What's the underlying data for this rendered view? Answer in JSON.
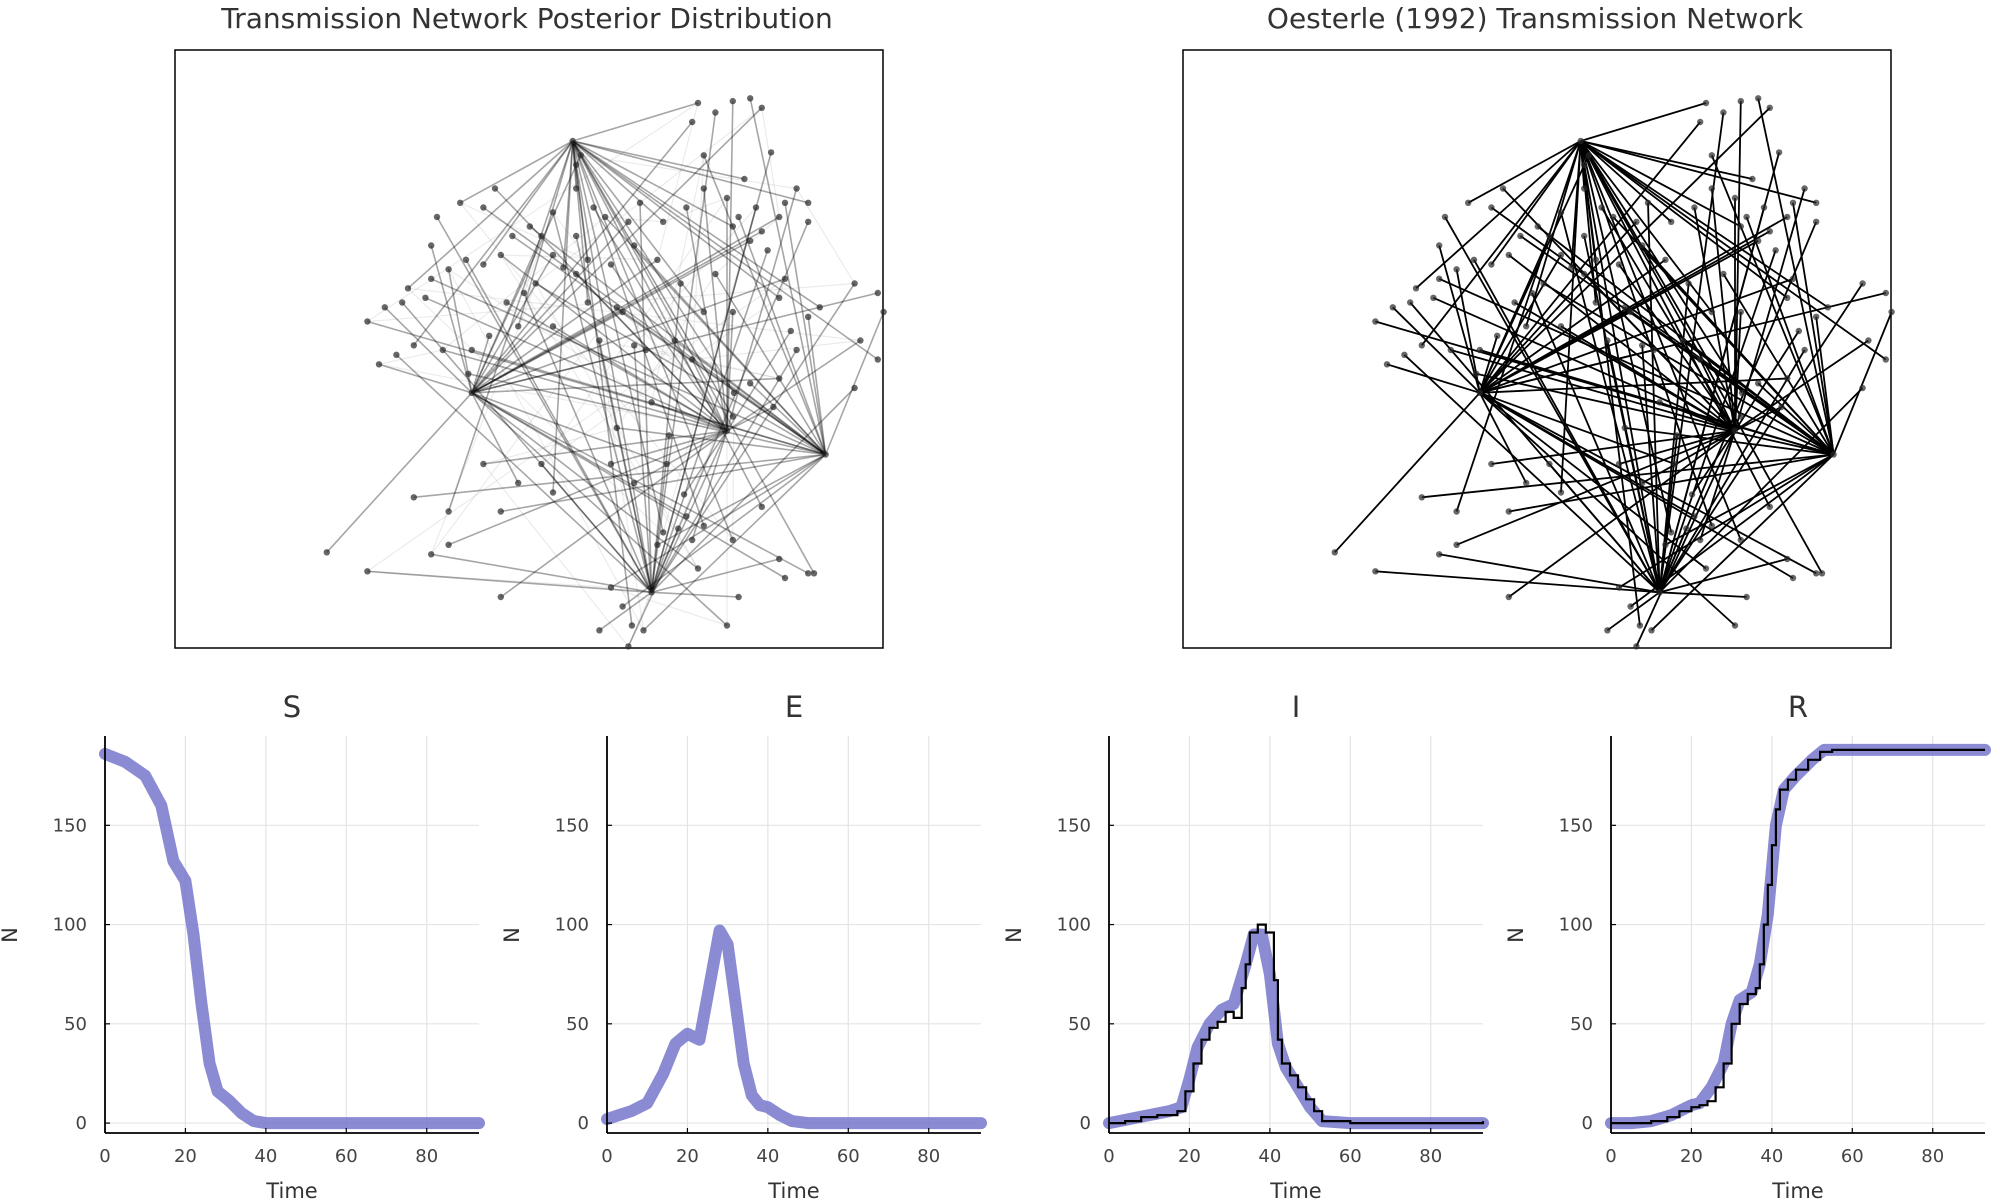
{
  "figure": {
    "network_titles": [
      "Transmission Network Posterior Distribution",
      "Oesterle (1992) Transmission Network"
    ]
  },
  "chart_data": [
    {
      "type": "network",
      "title": "Transmission Network Posterior Distribution",
      "edge_style": "posterior-weighted (transparent gray)"
    },
    {
      "type": "network",
      "title": "Oesterle (1992) Transmission Network",
      "edge_style": "observed (solid black)"
    },
    {
      "type": "line",
      "title": "S",
      "xlabel": "Time",
      "ylabel": "N",
      "xlim": [
        0,
        93
      ],
      "ylim": [
        -5,
        195
      ],
      "xticks": [
        0,
        20,
        40,
        60,
        80
      ],
      "yticks": [
        0,
        50,
        100,
        150
      ],
      "grid": true,
      "series": [
        {
          "band_color": "#7777cc",
          "x": [
            0,
            5,
            10,
            14,
            17,
            20,
            22,
            24,
            26,
            28,
            31,
            34,
            37,
            40,
            50,
            60,
            70,
            80,
            93
          ],
          "y": [
            186,
            182,
            175,
            160,
            132,
            122,
            95,
            60,
            30,
            16,
            11,
            5,
            1,
            0,
            0,
            0,
            0,
            0,
            0
          ]
        }
      ]
    },
    {
      "type": "line",
      "title": "E",
      "xlabel": "Time",
      "ylabel": "N",
      "xlim": [
        0,
        93
      ],
      "ylim": [
        -5,
        195
      ],
      "xticks": [
        0,
        20,
        40,
        60,
        80
      ],
      "yticks": [
        0,
        50,
        100,
        150
      ],
      "grid": true,
      "series": [
        {
          "band_color": "#7777cc",
          "x": [
            0,
            3,
            6,
            10,
            14,
            17,
            20,
            23,
            26,
            28,
            30,
            32,
            34,
            36,
            38,
            40,
            43,
            46,
            50,
            60,
            70,
            80,
            93
          ],
          "y": [
            2,
            4,
            6,
            10,
            25,
            40,
            45,
            42,
            75,
            97,
            90,
            60,
            30,
            14,
            9,
            8,
            4,
            1,
            0,
            0,
            0,
            0,
            0
          ]
        }
      ]
    },
    {
      "type": "line",
      "title": "I",
      "xlabel": "Time",
      "ylabel": "N",
      "xlim": [
        0,
        93
      ],
      "ylim": [
        -5,
        195
      ],
      "xticks": [
        0,
        20,
        40,
        60,
        80
      ],
      "yticks": [
        0,
        50,
        100,
        150
      ],
      "grid": true,
      "series": [
        {
          "band_color": "#7777cc",
          "x": [
            0,
            5,
            10,
            15,
            18,
            20,
            22,
            25,
            28,
            31,
            34,
            36,
            38,
            40,
            42,
            44,
            47,
            50,
            53,
            60,
            70,
            80,
            93
          ],
          "y": [
            0,
            2,
            4,
            6,
            8,
            22,
            38,
            50,
            57,
            60,
            80,
            95,
            95,
            75,
            40,
            28,
            18,
            8,
            1,
            0,
            0,
            0,
            0
          ]
        },
        {
          "line_color": "#000000",
          "step": true,
          "x": [
            0,
            4,
            8,
            12,
            17,
            19,
            21,
            23,
            25,
            27,
            29,
            31,
            33,
            34,
            35,
            37,
            39,
            41,
            42,
            43,
            45,
            47,
            49,
            51,
            53,
            60,
            70,
            80,
            93
          ],
          "y": [
            0,
            1,
            3,
            4,
            6,
            16,
            30,
            42,
            48,
            51,
            56,
            53,
            68,
            80,
            96,
            100,
            96,
            72,
            42,
            30,
            24,
            18,
            12,
            6,
            1,
            0,
            0,
            0,
            1
          ]
        }
      ]
    },
    {
      "type": "line",
      "title": "R",
      "xlabel": "Time",
      "ylabel": "N",
      "xlim": [
        0,
        93
      ],
      "ylim": [
        -5,
        195
      ],
      "xticks": [
        0,
        20,
        40,
        60,
        80
      ],
      "yticks": [
        0,
        50,
        100,
        150
      ],
      "grid": true,
      "series": [
        {
          "band_color": "#7777cc",
          "x": [
            0,
            5,
            10,
            15,
            18,
            20,
            22,
            25,
            28,
            30,
            32,
            35,
            37,
            39,
            41,
            43,
            46,
            50,
            53,
            60,
            70,
            80,
            93
          ],
          "y": [
            0,
            0,
            1,
            4,
            7,
            9,
            10,
            18,
            30,
            50,
            62,
            66,
            80,
            105,
            150,
            168,
            175,
            183,
            188,
            188,
            188,
            188,
            188
          ]
        },
        {
          "line_color": "#000000",
          "step": true,
          "x": [
            0,
            5,
            10,
            14,
            17,
            20,
            22,
            24,
            26,
            28,
            30,
            32,
            34,
            36,
            37,
            38,
            39,
            40,
            41,
            42,
            44,
            46,
            49,
            52,
            55,
            93
          ],
          "y": [
            0,
            0,
            1,
            3,
            6,
            8,
            9,
            11,
            18,
            30,
            50,
            60,
            65,
            68,
            80,
            100,
            120,
            140,
            158,
            168,
            173,
            178,
            183,
            187,
            188,
            188
          ]
        }
      ]
    }
  ]
}
